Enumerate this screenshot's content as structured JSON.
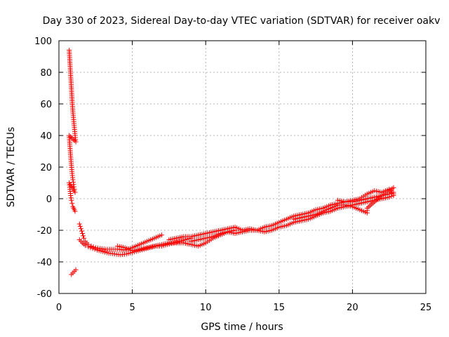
{
  "chart_data": {
    "type": "scatter",
    "title": "Day 330 of 2023, Sidereal Day-to-day VTEC variation (SDTVAR) for receiver oakv",
    "xlabel": "GPS time / hours",
    "ylabel": "SDTVAR / TECUs",
    "xlim": [
      0,
      25
    ],
    "ylim": [
      -60,
      100
    ],
    "xticks": [
      0,
      5,
      10,
      15,
      20,
      25
    ],
    "yticks": [
      -60,
      -40,
      -20,
      0,
      20,
      40,
      60,
      80,
      100
    ],
    "grid": true,
    "marker": "+",
    "color": "#ff0000",
    "series": [
      {
        "name": "SDTVAR",
        "path_points": [
          [
            0.7,
            94
          ],
          [
            0.75,
            86
          ],
          [
            0.8,
            78
          ],
          [
            0.85,
            70
          ],
          [
            0.9,
            62
          ],
          [
            0.95,
            55
          ],
          [
            1.0,
            50
          ],
          [
            1.05,
            45
          ],
          [
            1.1,
            40
          ],
          [
            1.15,
            36
          ],
          [
            0.7,
            40
          ],
          [
            0.75,
            33
          ],
          [
            0.8,
            27
          ],
          [
            0.85,
            21
          ],
          [
            0.9,
            16
          ],
          [
            0.95,
            12
          ],
          [
            1.0,
            9
          ],
          [
            1.05,
            6
          ],
          [
            1.1,
            4
          ],
          [
            0.7,
            10
          ],
          [
            0.75,
            6
          ],
          [
            0.8,
            2
          ],
          [
            0.85,
            -1
          ],
          [
            0.9,
            -3
          ],
          [
            0.95,
            -5
          ],
          [
            1.0,
            -6
          ],
          [
            1.05,
            -7
          ],
          [
            1.1,
            -8
          ],
          [
            0.85,
            -48
          ],
          [
            0.95,
            -47
          ],
          [
            1.05,
            -46
          ],
          [
            1.15,
            -45
          ],
          [
            1.4,
            -16
          ],
          [
            1.5,
            -19
          ],
          [
            1.6,
            -22
          ],
          [
            1.7,
            -25
          ],
          [
            1.8,
            -27
          ],
          [
            2.0,
            -29
          ],
          [
            2.2,
            -30
          ],
          [
            2.5,
            -31
          ],
          [
            2.8,
            -31.5
          ],
          [
            3.2,
            -32
          ],
          [
            3.6,
            -32
          ],
          [
            4.0,
            -32
          ],
          [
            4.5,
            -32.5
          ],
          [
            5.0,
            -31
          ],
          [
            5.5,
            -29
          ],
          [
            6.0,
            -27
          ],
          [
            6.5,
            -25
          ],
          [
            7.0,
            -23
          ],
          [
            1.4,
            -26
          ],
          [
            1.6,
            -28
          ],
          [
            1.8,
            -29.5
          ],
          [
            2.0,
            -30.5
          ],
          [
            2.3,
            -31.5
          ],
          [
            2.6,
            -32.5
          ],
          [
            3.0,
            -33.5
          ],
          [
            3.4,
            -34.5
          ],
          [
            3.8,
            -35
          ],
          [
            4.2,
            -35.5
          ],
          [
            4.6,
            -35
          ],
          [
            5.0,
            -34
          ],
          [
            5.4,
            -33
          ],
          [
            5.8,
            -32
          ],
          [
            6.2,
            -31
          ],
          [
            6.6,
            -30
          ],
          [
            7.0,
            -30
          ],
          [
            7.4,
            -29
          ],
          [
            7.8,
            -28
          ],
          [
            8.2,
            -27
          ],
          [
            8.6,
            -26
          ],
          [
            9.0,
            -25
          ],
          [
            4.0,
            -30
          ],
          [
            4.5,
            -31
          ],
          [
            5.0,
            -33
          ],
          [
            5.5,
            -32
          ],
          [
            6.0,
            -31
          ],
          [
            6.5,
            -30
          ],
          [
            7.0,
            -29
          ],
          [
            7.5,
            -28
          ],
          [
            8.0,
            -28
          ],
          [
            8.5,
            -28
          ],
          [
            9.0,
            -29
          ],
          [
            9.5,
            -30
          ],
          [
            10.0,
            -28
          ],
          [
            10.5,
            -25
          ],
          [
            11.0,
            -23
          ],
          [
            11.5,
            -21
          ],
          [
            12.0,
            -20
          ],
          [
            7.5,
            -26
          ],
          [
            8.0,
            -25
          ],
          [
            8.5,
            -24
          ],
          [
            9.0,
            -24
          ],
          [
            9.5,
            -23
          ],
          [
            10.0,
            -22
          ],
          [
            10.5,
            -21
          ],
          [
            11.0,
            -20
          ],
          [
            11.5,
            -19
          ],
          [
            12.0,
            -18
          ],
          [
            12.5,
            -20
          ],
          [
            13.0,
            -19
          ],
          [
            13.5,
            -20
          ],
          [
            14.0,
            -18
          ],
          [
            14.5,
            -17
          ],
          [
            15.0,
            -15
          ],
          [
            15.5,
            -13
          ],
          [
            16.0,
            -11
          ],
          [
            16.5,
            -10
          ],
          [
            17.0,
            -9
          ],
          [
            17.5,
            -7
          ],
          [
            18.0,
            -6
          ],
          [
            18.5,
            -4
          ],
          [
            19.0,
            -3
          ],
          [
            19.5,
            -2
          ],
          [
            20.0,
            -2
          ],
          [
            20.5,
            -1
          ],
          [
            21.0,
            0
          ],
          [
            21.5,
            1
          ],
          [
            22.0,
            2
          ],
          [
            22.5,
            3
          ],
          [
            22.8,
            4
          ],
          [
            9.0,
            -27
          ],
          [
            9.5,
            -26
          ],
          [
            10.0,
            -25
          ],
          [
            10.5,
            -24
          ],
          [
            11.0,
            -22
          ],
          [
            11.5,
            -21
          ],
          [
            12.0,
            -22
          ],
          [
            12.5,
            -21
          ],
          [
            13.0,
            -20
          ],
          [
            13.5,
            -20
          ],
          [
            14.0,
            -21
          ],
          [
            14.5,
            -20
          ],
          [
            15.0,
            -18
          ],
          [
            15.5,
            -17
          ],
          [
            16.0,
            -15
          ],
          [
            16.5,
            -14
          ],
          [
            17.0,
            -13
          ],
          [
            17.5,
            -11
          ],
          [
            18.0,
            -9
          ],
          [
            18.5,
            -8
          ],
          [
            19.0,
            -6
          ],
          [
            19.5,
            -5
          ],
          [
            20.0,
            -4
          ],
          [
            20.5,
            -3
          ],
          [
            21.0,
            -2
          ],
          [
            21.5,
            -1
          ],
          [
            22.0,
            0
          ],
          [
            22.5,
            1
          ],
          [
            22.8,
            2
          ],
          [
            16.0,
            -13
          ],
          [
            16.5,
            -12
          ],
          [
            17.0,
            -11
          ],
          [
            17.5,
            -10
          ],
          [
            18.0,
            -8
          ],
          [
            18.5,
            -6
          ],
          [
            19.0,
            -4
          ],
          [
            19.5,
            -4
          ],
          [
            20.0,
            -5
          ],
          [
            20.5,
            -7
          ],
          [
            21.0,
            -9
          ],
          [
            21.0,
            -6
          ],
          [
            21.5,
            -2
          ],
          [
            22.0,
            2
          ],
          [
            22.5,
            5
          ],
          [
            22.8,
            7
          ],
          [
            19.0,
            -1
          ],
          [
            19.5,
            -2
          ],
          [
            20.0,
            -1
          ],
          [
            20.5,
            0
          ],
          [
            21.0,
            3
          ],
          [
            21.5,
            5
          ],
          [
            22.0,
            4
          ],
          [
            22.5,
            6
          ],
          [
            22.8,
            3
          ]
        ]
      }
    ]
  }
}
